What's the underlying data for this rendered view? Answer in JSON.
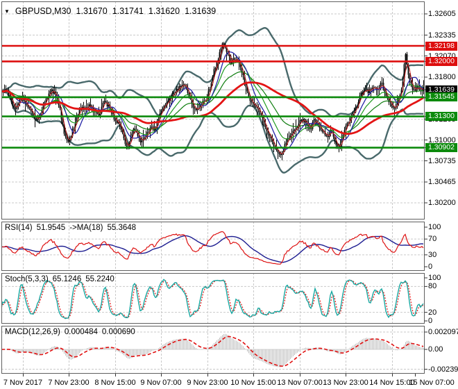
{
  "window": {
    "dropdown_icon": "▼",
    "symbol_period": "GBPUSD,M30",
    "open": "1.31670",
    "high": "1.31741",
    "low": "1.31620",
    "close": "1.31639"
  },
  "colors": {
    "resistance_line": "#dd0e0e",
    "support_line": "#0c8a0c",
    "current_price_badge": "#000000",
    "current_price_line": "#b6b6b6",
    "grid": "#c9c9c9",
    "panel_border": "#5f5f5f",
    "bars": "#000000",
    "bollinger": "#49696b",
    "ma_slow_red": "#e31414",
    "ma_blue": "#2323a6",
    "ma_green_fast": "#1f9b1f",
    "ma_green_slow": "#0e7d0e",
    "ma_fast_red": "#c92424",
    "rsi_line": "#dd1111",
    "rsi_ma_line": "#1c1c90",
    "stoch_k": "#18a8a1",
    "stoch_d": "#e01010",
    "macd_hist": "#bdbdbd",
    "macd_signal": "#e01010"
  },
  "chart_data": {
    "main": {
      "type": "candlestick",
      "symbol": "GBPUSD",
      "timeframe": "M30",
      "ohlc": [
        1.3167,
        1.31741,
        1.3162,
        1.31639
      ],
      "ylim": [
        1.29988,
        1.32764
      ],
      "yticks": [
        1.32605,
        1.32335,
        1.3207,
        1.318,
        1.31535,
        1.31265,
        1.31,
        1.30735,
        1.30465,
        1.302
      ],
      "current_price": 1.31639,
      "price_levels": [
        {
          "label": "1.32198",
          "value": 1.32198,
          "type": "resistance"
        },
        {
          "label": "1.32000",
          "value": 1.32,
          "type": "resistance"
        },
        {
          "label": "1.31545",
          "value": 1.31545,
          "type": "support"
        },
        {
          "label": "1.31300",
          "value": 1.313,
          "type": "support"
        },
        {
          "label": "1.30902",
          "value": 1.30902,
          "type": "support"
        }
      ],
      "badges": [
        {
          "label": "1.32198",
          "value": 1.32198,
          "type": "resistance"
        },
        {
          "label": "1.32000",
          "value": 1.32,
          "type": "resistance"
        },
        {
          "label": "1.31639",
          "value": 1.31639,
          "type": "current"
        },
        {
          "label": "1.31545",
          "value": 1.31545,
          "type": "support"
        },
        {
          "label": "1.31300",
          "value": 1.313,
          "type": "support"
        },
        {
          "label": "1.30902",
          "value": 1.30902,
          "type": "support"
        }
      ],
      "bars": 305,
      "overlays": {
        "bollinger": {
          "period": 34,
          "deviation": 2.0
        },
        "ma_slow_red_period": 62,
        "ma_blue_period": 10,
        "ma_green_fast_period": 18,
        "ma_green_slow_period": 36,
        "ma_fast_red_period": 4
      },
      "price_path_anchors": [
        [
          0,
          1.316
        ],
        [
          8,
          1.3164
        ],
        [
          14,
          1.3157
        ],
        [
          20,
          1.3139
        ],
        [
          26,
          1.3149
        ],
        [
          33,
          1.3152
        ],
        [
          40,
          1.3142
        ],
        [
          47,
          1.3132
        ],
        [
          53,
          1.3126
        ],
        [
          59,
          1.3136
        ],
        [
          65,
          1.315
        ],
        [
          72,
          1.3163
        ],
        [
          79,
          1.3159
        ],
        [
          85,
          1.3143
        ],
        [
          91,
          1.3112
        ],
        [
          97,
          1.3096
        ],
        [
          103,
          1.3109
        ],
        [
          109,
          1.3126
        ],
        [
          115,
          1.3143
        ],
        [
          121,
          1.3136
        ],
        [
          128,
          1.3143
        ],
        [
          135,
          1.3137
        ],
        [
          142,
          1.3132
        ],
        [
          149,
          1.3149
        ],
        [
          156,
          1.3144
        ],
        [
          162,
          1.3131
        ],
        [
          169,
          1.3122
        ],
        [
          176,
          1.3112
        ],
        [
          181,
          1.3087
        ],
        [
          187,
          1.3099
        ],
        [
          193,
          1.3117
        ],
        [
          199,
          1.3103
        ],
        [
          205,
          1.3097
        ],
        [
          211,
          1.3106
        ],
        [
          217,
          1.3119
        ],
        [
          223,
          1.3111
        ],
        [
          229,
          1.3131
        ],
        [
          237,
          1.3144
        ],
        [
          245,
          1.3153
        ],
        [
          253,
          1.3161
        ],
        [
          261,
          1.3169
        ],
        [
          267,
          1.3171
        ],
        [
          273,
          1.3154
        ],
        [
          279,
          1.3141
        ],
        [
          285,
          1.3139
        ],
        [
          291,
          1.3147
        ],
        [
          297,
          1.3151
        ],
        [
          303,
          1.3169
        ],
        [
          309,
          1.3192
        ],
        [
          315,
          1.3207
        ],
        [
          321,
          1.3223
        ],
        [
          327,
          1.3211
        ],
        [
          333,
          1.3197
        ],
        [
          339,
          1.3206
        ],
        [
          345,
          1.3196
        ],
        [
          351,
          1.3177
        ],
        [
          357,
          1.3159
        ],
        [
          363,
          1.3146
        ],
        [
          369,
          1.3142
        ],
        [
          375,
          1.3133
        ],
        [
          381,
          1.3117
        ],
        [
          387,
          1.3104
        ],
        [
          393,
          1.3096
        ],
        [
          399,
          1.3087
        ],
        [
          405,
          1.3079
        ],
        [
          411,
          1.3098
        ],
        [
          417,
          1.3106
        ],
        [
          423,
          1.3113
        ],
        [
          429,
          1.3119
        ],
        [
          435,
          1.3126
        ],
        [
          441,
          1.3121
        ],
        [
          447,
          1.3114
        ],
        [
          453,
          1.3126
        ],
        [
          459,
          1.3117
        ],
        [
          465,
          1.3109
        ],
        [
          471,
          1.3104
        ],
        [
          477,
          1.3113
        ],
        [
          483,
          1.3097
        ],
        [
          489,
          1.3091
        ],
        [
          495,
          1.3109
        ],
        [
          501,
          1.3123
        ],
        [
          507,
          1.3131
        ],
        [
          513,
          1.3143
        ],
        [
          519,
          1.3156
        ],
        [
          525,
          1.3166
        ],
        [
          531,
          1.3159
        ],
        [
          537,
          1.3169
        ],
        [
          543,
          1.3161
        ],
        [
          549,
          1.3173
        ],
        [
          555,
          1.3159
        ],
        [
          561,
          1.3149
        ],
        [
          567,
          1.3137
        ],
        [
          573,
          1.3153
        ],
        [
          579,
          1.3167
        ],
        [
          584,
          1.3212
        ],
        [
          588,
          1.3181
        ],
        [
          592,
          1.3171
        ],
        [
          596,
          1.3163
        ],
        [
          601,
          1.3168
        ],
        [
          606,
          1.3165
        ],
        [
          610,
          1.3164
        ]
      ]
    },
    "rsi": {
      "type": "line",
      "name": "RSI(14)",
      "value": "51.9545",
      "ma_name": "->MA(18)",
      "ma_value": "55.3648",
      "period": 14,
      "ma_period": 18,
      "yticks": [
        100,
        70,
        30,
        0
      ],
      "gridlines": [
        70,
        30
      ],
      "ylim": [
        0,
        100
      ]
    },
    "stoch": {
      "type": "line",
      "name": "Stoch(5,3,3)",
      "k_value": "65.1246",
      "d_value": "55.2240",
      "k_period": 5,
      "slowing": 3,
      "d_period": 3,
      "yticks": [
        100,
        80,
        20,
        0
      ],
      "gridlines": [
        80,
        20
      ],
      "ylim": [
        0,
        100
      ]
    },
    "macd": {
      "type": "histogram+line",
      "name": "MACD(12,26,9)",
      "value": "0.000484",
      "signal_value": "0.000690",
      "fast": 12,
      "slow": 26,
      "signal": 9,
      "ytick_labels": [
        "0.002097",
        "0.00",
        "-0.002398"
      ],
      "ytick_values": [
        0.002097,
        0,
        -0.002398
      ]
    },
    "xaxis": {
      "labels": [
        "7 Nov 2017",
        "7 Nov 23:00",
        "8 Nov 15:00",
        "9 Nov 07:00",
        "9 Nov 23:00",
        "10 Nov 15:00",
        "13 Nov 07:00",
        "13 Nov 23:00",
        "14 Nov 15:00",
        "15 Nov 07:00"
      ]
    }
  }
}
